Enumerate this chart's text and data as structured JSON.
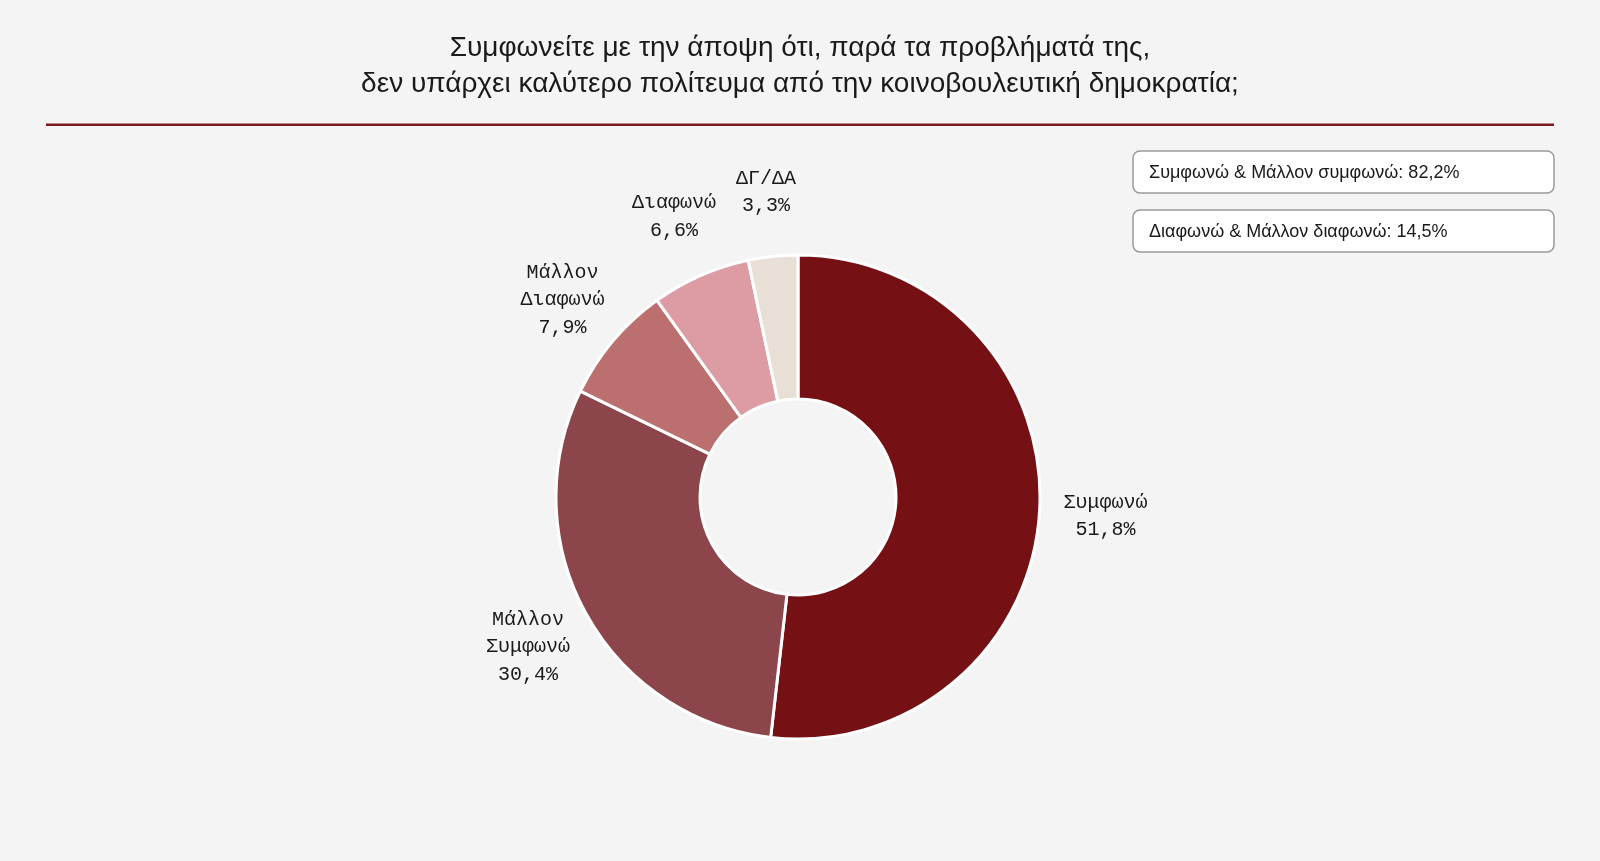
{
  "chart_data": {
    "type": "donut",
    "title": "Συμφωνείτε με την άποψη ότι, παρά τα προβλήματά της,\nδεν υπάρχει καλύτερο πολίτευμα από την κοινοβουλευτική δημοκρατία;",
    "categories": [
      "Συμφωνώ",
      "Μάλλον Συμφωνώ",
      "Μάλλον Διαφωνώ",
      "Διαφωνώ",
      "ΔΓ/ΔΑ"
    ],
    "values": [
      51.8,
      30.4,
      7.9,
      6.6,
      3.3
    ],
    "colors": [
      "#751015",
      "#8c464b",
      "#bb6f6f",
      "#dd9ba3",
      "#e8dfd6"
    ],
    "value_labels": [
      "51,8%",
      "30,4%",
      "7,9%",
      "6,6%",
      "3,3%"
    ],
    "annotations": [
      "Συμφωνώ & Μάλλον συμφωνώ: 82,2%",
      "Διαφωνώ & Μάλλον διαφωνώ: 14,5%"
    ]
  }
}
